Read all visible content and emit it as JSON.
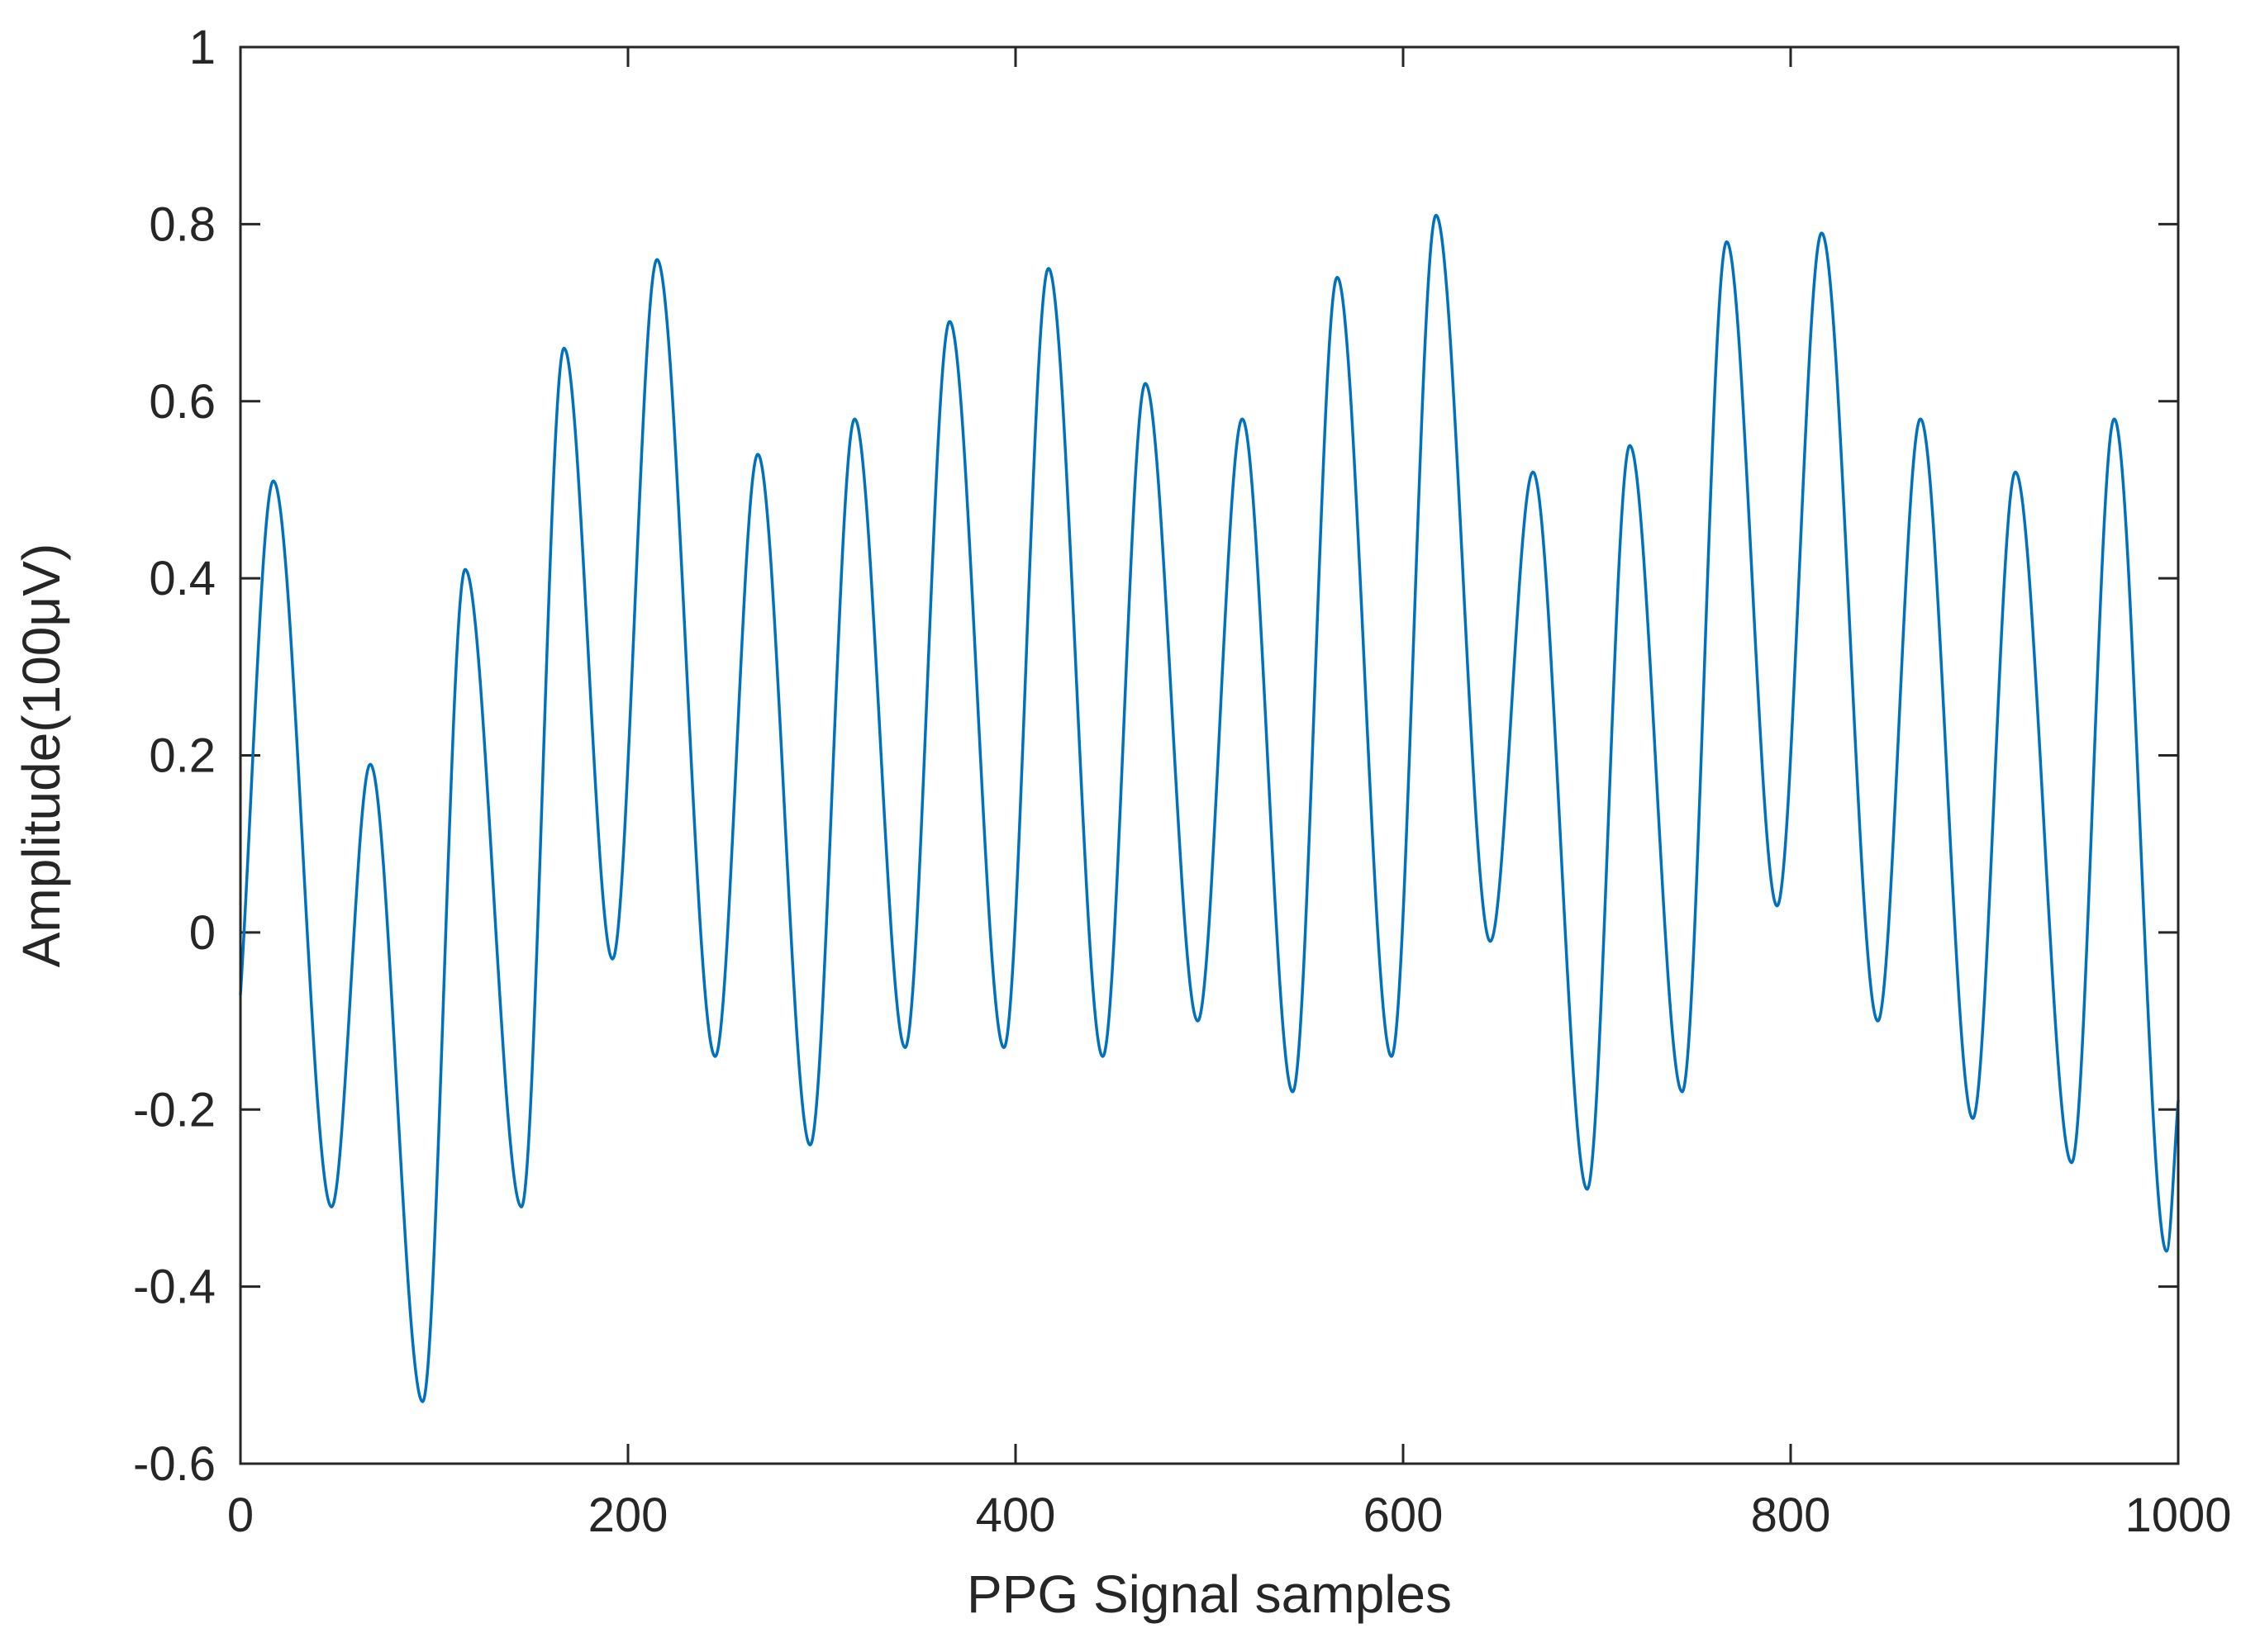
{
  "chart_data": {
    "type": "line",
    "title": "",
    "xlabel": "PPG Signal samples",
    "ylabel": "Amplitude(100μV)",
    "xlim": [
      0,
      1000
    ],
    "ylim": [
      -0.6,
      1
    ],
    "x_ticks": [
      0,
      200,
      400,
      600,
      800,
      1000
    ],
    "y_ticks": [
      -0.6,
      -0.4,
      -0.2,
      0,
      0.2,
      0.4,
      0.6,
      0.8,
      1
    ],
    "x_tick_labels": [
      "0",
      "200",
      "400",
      "600",
      "800",
      "1000"
    ],
    "y_tick_labels": [
      "-0.6",
      "-0.4",
      "-0.2",
      "0",
      "0.2",
      "0.4",
      "0.6",
      "0.8",
      "1"
    ],
    "grid": false,
    "legend": "none",
    "line_color": "#0072BD",
    "series": [
      {
        "x": [
          0,
          17,
          47,
          67,
          94,
          116,
          145,
          167,
          192,
          215,
          245,
          267,
          294,
          317,
          343,
          366,
          394,
          417,
          445,
          467,
          494,
          517,
          543,
          566,
          594,
          617,
          645,
          667,
          695,
          717,
          744,
          767,
          793,
          816,
          845,
          867,
          894,
          916,
          945,
          967,
          994,
          1000
        ],
        "y": [
          -0.07,
          0.51,
          -0.31,
          0.19,
          -0.53,
          0.41,
          -0.31,
          0.66,
          -0.03,
          0.76,
          -0.14,
          0.54,
          -0.24,
          0.58,
          -0.13,
          0.69,
          -0.13,
          0.75,
          -0.14,
          0.62,
          -0.1,
          0.58,
          -0.18,
          0.74,
          -0.14,
          0.81,
          -0.01,
          0.52,
          -0.29,
          0.55,
          -0.18,
          0.78,
          0.03,
          0.79,
          -0.1,
          0.58,
          -0.21,
          0.52,
          -0.26,
          0.58,
          -0.36,
          -0.19
        ]
      }
    ]
  }
}
